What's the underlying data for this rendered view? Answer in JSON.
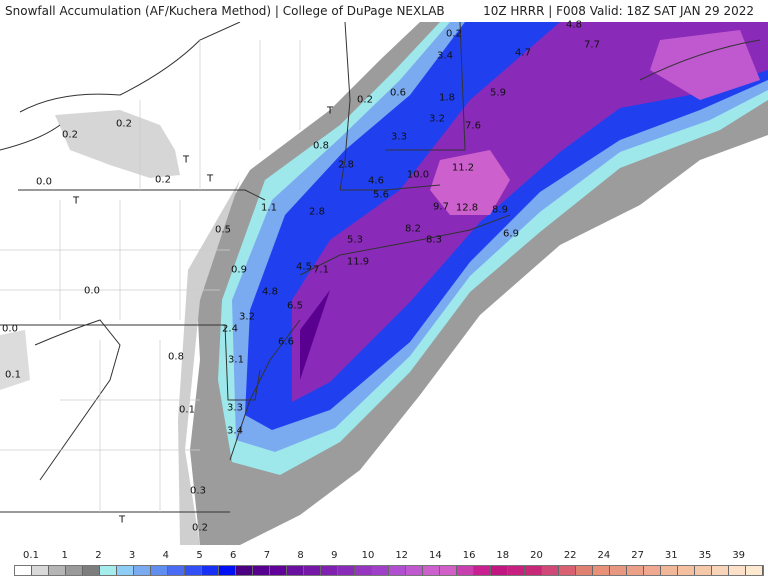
{
  "header": {
    "left": "Snowfall Accumulation (AF/Kuchera Method) | College of DuPage NEXLAB",
    "right": "10Z HRRR | F008 Valid: 18Z SAT JAN 29 2022"
  },
  "map": {
    "labels": [
      "0.2",
      "0.2",
      "0.0",
      "T",
      "0.2",
      "T",
      "T",
      "T",
      "0.2",
      "0.8",
      "2.8",
      "4.6",
      "5.6",
      "1.1",
      "2.8",
      "0.5",
      "5.3",
      "0.9",
      "4.5",
      "7.1",
      "11.9",
      "0.0",
      "4.8",
      "6.5",
      "3.2",
      "2.4",
      "6.6",
      "0.0",
      "0.8",
      "3.1",
      "0.1",
      "3.3",
      "0.1",
      "3.4",
      "0.3",
      "T",
      "0.2",
      "0.2",
      "3.4",
      "4.7",
      "4.8",
      "0.6",
      "1.8",
      "5.9",
      "7.7",
      "3.2",
      "3.3",
      "7.6",
      "10.0",
      "11.2",
      "9.7",
      "12.8",
      "8.9",
      "8.2",
      "8.3",
      "6.9"
    ]
  },
  "colorbar": {
    "ticks": [
      "0.1",
      "1",
      "2",
      "3",
      "4",
      "5",
      "6",
      "7",
      "8",
      "9",
      "10",
      "12",
      "14",
      "16",
      "18",
      "20",
      "22",
      "24",
      "27",
      "31",
      "35",
      "39"
    ],
    "colors": [
      "#ffffff",
      "#d9d9d9",
      "#b5b5b5",
      "#9a9a9a",
      "#7d7d7d",
      "#a5eded",
      "#8ecdf5",
      "#7aaaf0",
      "#5f8ef0",
      "#4a6cf5",
      "#3050f5",
      "#1830f5",
      "#0010f5",
      "#4b0082",
      "#560090",
      "#62009a",
      "#6a10a0",
      "#7518a8",
      "#8020b0",
      "#8a2ab8",
      "#9535c0",
      "#a040c8",
      "#b050d0",
      "#c058d0",
      "#cc60cc",
      "#d060c8",
      "#c840b0",
      "#c82090",
      "#c01880",
      "#c82080",
      "#c82878",
      "#d04878",
      "#d86070",
      "#e08070",
      "#e89078",
      "#e89880",
      "#eca088",
      "#f0a890",
      "#f0b898",
      "#f4c0a0",
      "#f4c8a8",
      "#f8d4b8",
      "#fce0c8",
      "#fde8d0"
    ]
  }
}
